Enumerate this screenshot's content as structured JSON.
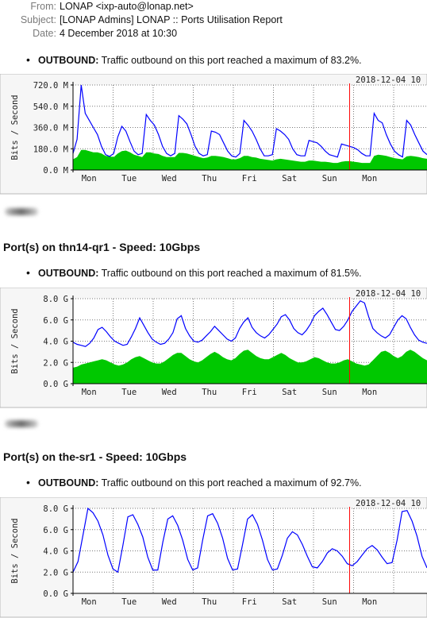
{
  "email": {
    "from_label": "From:",
    "from_value": "LONAP <ixp-auto@lonap.net>",
    "subject_label": "Subject:",
    "subject_value": "[LONAP Admins] LONAP :: Ports Utilisation Report",
    "date_label": "Date:",
    "date_value": "4 December 2018 at 10:30"
  },
  "sections": [
    {
      "heading": "",
      "bullet_label": "OUTBOUND:",
      "bullet_text": "Traffic outbound on this port reached a maximum of 83.2%."
    },
    {
      "heading": "Port(s) on thn14-qr1 - Speed: 10Gbps",
      "bullet_label": "OUTBOUND:",
      "bullet_text": "Traffic outbound on this port reached a maximum of 81.5%."
    },
    {
      "heading": "Port(s) on the-sr1 - Speed: 10Gbps",
      "bullet_label": "OUTBOUND:",
      "bullet_text": "Traffic outbound on this port reached a maximum of 92.7%."
    }
  ],
  "chart_data": [
    {
      "type": "area",
      "ylabel": "Bits / Second",
      "timestamp": "2018-12-04 10",
      "x_ticks": [
        "Mon",
        "Tue",
        "Wed",
        "Thu",
        "Fri",
        "Sat",
        "Sun",
        "Mon"
      ],
      "y_ticks": [
        "0.0 M",
        "180.0 M",
        "360.0 M",
        "540.0 M",
        "720.0 M"
      ],
      "y_max": 720,
      "series": [
        {
          "color": "#0000ff",
          "values": [
            140,
            260,
            720,
            480,
            420,
            360,
            300,
            200,
            130,
            115,
            140,
            280,
            370,
            330,
            240,
            160,
            130,
            140,
            470,
            420,
            380,
            300,
            200,
            140,
            120,
            140,
            460,
            430,
            390,
            300,
            200,
            140,
            120,
            130,
            330,
            320,
            300,
            230,
            160,
            120,
            110,
            140,
            420,
            380,
            330,
            260,
            180,
            120,
            120,
            130,
            350,
            330,
            300,
            260,
            180,
            130,
            120,
            120,
            250,
            240,
            230,
            200,
            160,
            130,
            120,
            110,
            220,
            210,
            200,
            190,
            170,
            140,
            120,
            120,
            480,
            420,
            400,
            300,
            220,
            160,
            130,
            110,
            420,
            380,
            300,
            230,
            160,
            130
          ]
        },
        {
          "color": "#00c800",
          "values": [
            90,
            110,
            170,
            170,
            160,
            150,
            150,
            140,
            120,
            115,
            110,
            140,
            160,
            165,
            150,
            130,
            120,
            110,
            150,
            150,
            140,
            135,
            120,
            110,
            110,
            110,
            145,
            145,
            140,
            130,
            120,
            110,
            100,
            105,
            120,
            120,
            115,
            110,
            100,
            90,
            90,
            100,
            120,
            120,
            110,
            105,
            95,
            90,
            85,
            80,
            90,
            95,
            90,
            85,
            80,
            75,
            70,
            70,
            80,
            80,
            75,
            70,
            70,
            65,
            60,
            60,
            70,
            75,
            75,
            70,
            65,
            60,
            60,
            60,
            120,
            130,
            125,
            120,
            110,
            100,
            95,
            90,
            115,
            120,
            115,
            110,
            100,
            95
          ]
        }
      ]
    },
    {
      "type": "area",
      "ylabel": "Bits / Second",
      "timestamp": "2018-12-04 10",
      "x_ticks": [
        "Mon",
        "Tue",
        "Wed",
        "Thu",
        "Fri",
        "Sat",
        "Sun",
        "Mon"
      ],
      "y_ticks": [
        "0.0 G",
        "2.0 G",
        "4.0 G",
        "6.0 G",
        "8.0 G"
      ],
      "y_max": 8,
      "series": [
        {
          "color": "#0000ff",
          "values": [
            3.9,
            3.7,
            3.6,
            3.5,
            3.8,
            4.3,
            5.1,
            5.3,
            4.9,
            4.4,
            4.0,
            3.8,
            3.6,
            3.7,
            4.4,
            5.2,
            6.2,
            5.5,
            4.8,
            4.2,
            3.9,
            3.7,
            3.8,
            4.2,
            4.8,
            6.1,
            6.4,
            5.2,
            4.5,
            4.0,
            3.9,
            4.1,
            4.5,
            4.9,
            5.4,
            5.0,
            4.6,
            4.2,
            4.0,
            4.3,
            5.2,
            5.8,
            6.2,
            5.3,
            4.8,
            4.5,
            4.3,
            4.6,
            5.1,
            5.6,
            6.3,
            6.5,
            6.0,
            5.2,
            4.8,
            4.6,
            5.0,
            5.6,
            6.4,
            6.8,
            7.1,
            6.5,
            5.8,
            5.1,
            5.0,
            5.4,
            6.0,
            6.8,
            7.3,
            7.8,
            7.6,
            6.3,
            5.2,
            4.8,
            4.5,
            4.3,
            4.6,
            5.3,
            6.0,
            6.4,
            6.1,
            5.3,
            4.6,
            4.1,
            3.9,
            3.8
          ]
        },
        {
          "color": "#00c800",
          "values": [
            1.5,
            1.6,
            1.8,
            1.9,
            2.0,
            2.1,
            2.2,
            2.3,
            2.2,
            2.0,
            1.8,
            1.7,
            1.8,
            2.0,
            2.3,
            2.5,
            2.6,
            2.4,
            2.2,
            2.0,
            1.9,
            1.9,
            2.1,
            2.4,
            2.7,
            2.9,
            2.9,
            2.6,
            2.3,
            2.1,
            2.0,
            2.2,
            2.5,
            2.8,
            3.0,
            2.8,
            2.5,
            2.3,
            2.2,
            2.4,
            2.8,
            3.1,
            3.2,
            2.9,
            2.6,
            2.4,
            2.3,
            2.3,
            2.5,
            2.7,
            2.9,
            2.7,
            2.4,
            2.2,
            2.0,
            2.0,
            2.1,
            2.3,
            2.5,
            2.4,
            2.2,
            2.0,
            1.9,
            1.9,
            2.0,
            2.2,
            2.3,
            2.1,
            1.9,
            1.8,
            1.7,
            1.8,
            2.2,
            2.6,
            3.0,
            3.1,
            2.9,
            2.6,
            2.4,
            2.6,
            3.0,
            3.2,
            3.0,
            2.7,
            2.4,
            2.2
          ]
        }
      ]
    },
    {
      "type": "area",
      "ylabel": "Bits / Second",
      "timestamp": "2018-12-04 10",
      "x_ticks": [
        "Mon",
        "Tue",
        "Wed",
        "Thu",
        "Fri",
        "Sat",
        "Sun",
        "Mon"
      ],
      "y_ticks": [
        "0.0 G",
        "2.0 G",
        "4.0 G",
        "6.0 G",
        "8.0 G"
      ],
      "y_max": 8,
      "series": [
        {
          "color": "#0000ff",
          "values": [
            2.0,
            3.0,
            5.5,
            8.0,
            7.6,
            6.8,
            5.5,
            3.6,
            2.3,
            2.0,
            4.5,
            7.2,
            7.4,
            6.5,
            5.3,
            3.4,
            2.2,
            2.2,
            4.8,
            7.0,
            7.3,
            6.4,
            5.0,
            3.2,
            2.2,
            2.4,
            5.0,
            7.3,
            7.5,
            6.6,
            5.2,
            3.3,
            2.2,
            2.3,
            4.6,
            7.0,
            7.4,
            6.5,
            5.0,
            3.2,
            2.2,
            2.3,
            3.6,
            5.2,
            5.8,
            5.5,
            4.6,
            3.5,
            2.5,
            2.4,
            3.0,
            3.8,
            4.2,
            4.0,
            3.5,
            2.8,
            2.6,
            3.0,
            3.6,
            4.2,
            4.5,
            4.1,
            3.4,
            2.8,
            2.9,
            5.0,
            7.7,
            7.8,
            6.8,
            5.4,
            3.5,
            2.4
          ]
        }
      ]
    }
  ]
}
